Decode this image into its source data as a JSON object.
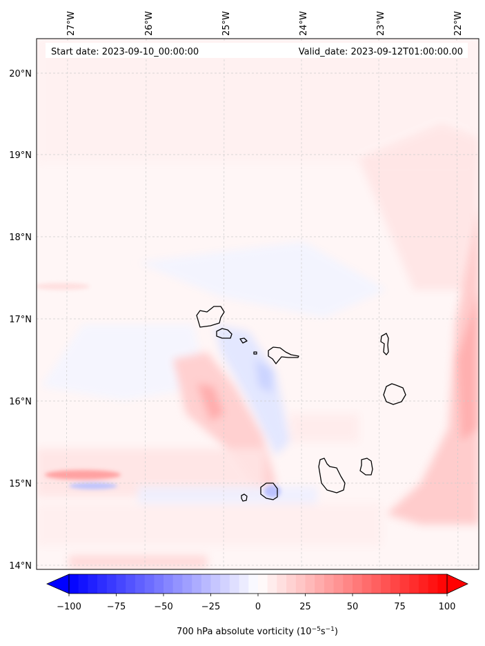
{
  "header": {
    "start_date": "Start date: 2023-09-10_00:00:00",
    "valid_date": "Valid_date: 2023-09-12T01:00:00.00"
  },
  "longitude_ticks": [
    "27°W",
    "26°W",
    "25°W",
    "24°W",
    "23°W",
    "22°W"
  ],
  "latitude_ticks": [
    "20°N",
    "19°N",
    "18°N",
    "17°N",
    "16°N",
    "15°N",
    "14°N"
  ],
  "colorbar": {
    "ticks": [
      "−100",
      "−75",
      "−50",
      "−25",
      "0",
      "25",
      "50",
      "75",
      "100"
    ],
    "label": "700 hPa absolute vorticity (10",
    "label_exp1": "−5",
    "label_mid": "s",
    "label_exp2": "−1",
    "label_end": ")",
    "min": -100,
    "max": 100,
    "neg_color": "#0000ff",
    "pos_color": "#ff0000"
  },
  "colors": {
    "coastline": "#000000",
    "gridline": "#cccccc"
  }
}
